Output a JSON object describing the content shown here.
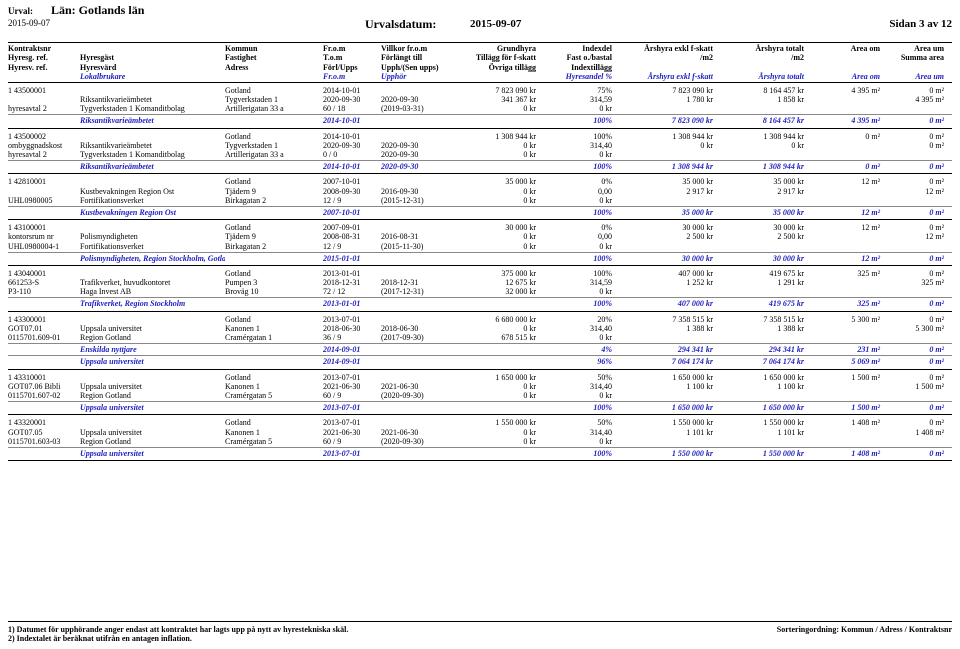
{
  "header": {
    "urval_label": "Urval:",
    "lan_label": "Län: Gotlands län",
    "date_left": "2015-09-07",
    "urvalsdatum_label": "Urvalsdatum:",
    "urvalsdatum": "2015-09-07",
    "sidan": "Sidan 3 av 12"
  },
  "col": {
    "r1": {
      "c1": "Kontraktsnr",
      "c2": "",
      "c3": "Kommun",
      "c4": "Fr.o.m",
      "c5": "Villkor fr.o.m",
      "c6": "Grundhyra",
      "c7": "Indexdel",
      "c8": "Årshyra exkl f-skatt",
      "c9": "Årshyra totalt",
      "c10": "Area om",
      "c11": "Area um"
    },
    "r2": {
      "c1": "Hyresg. ref.",
      "c2": "Hyresgäst",
      "c3": "Fastighet",
      "c4": "T.o.m",
      "c5": "Förlängt till",
      "c6": "Tillägg för f-skatt",
      "c7": "Fast o./bastal",
      "c8": "/m2",
      "c9": "/m2",
      "c10": "",
      "c11": "Summa area"
    },
    "r3": {
      "c1": "Hyresv. ref.",
      "c2": "Hyresvärd",
      "c3": "Adress",
      "c4": "Förl/Upps",
      "c5": "Upph/(Sen upps)",
      "c6": "Övriga tillägg",
      "c7": "Indextillägg",
      "c8": "",
      "c9": "",
      "c10": "",
      "c11": ""
    },
    "r4": {
      "c1": "",
      "c2": "Lokalbrukare",
      "c3": "",
      "c4": "Fr.o.m",
      "c5": "Upphör",
      "c6": "",
      "c7": "Hyresandel %",
      "c8": "Årshyra exkl f-skatt",
      "c9": "Årshyra totalt",
      "c10": "Area om",
      "c11": "Area um"
    }
  },
  "groups": [
    {
      "rows": [
        {
          "c1": "1 43500001",
          "c2": "",
          "c3": "Gotland",
          "c4": "2014-10-01",
          "c5": "",
          "c6": "7 823 090 kr",
          "c7": "75%",
          "c8": "7 823 090 kr",
          "c9": "8 164 457 kr",
          "c10": "4 395 m²",
          "c11": "0 m²"
        },
        {
          "c1": "",
          "c2": "Riksantikvarieämbetet",
          "c3": "Tygverkstaden 1",
          "c4": "2020-09-30",
          "c5": "2020-09-30",
          "c6": "341 367 kr",
          "c7": "314,59",
          "c8": "1 780 kr",
          "c9": "1 858 kr",
          "c10": "",
          "c11": "4 395 m²"
        },
        {
          "c1": "hyresavtal 2",
          "c2": "Tygverkstaden 1 Komanditbolag",
          "c3": "Artillerigatan 33 a",
          "c4": "60 / 18",
          "c5": "(2019-03-31)",
          "c6": "0 kr",
          "c7": "0 kr",
          "c8": "",
          "c9": "",
          "c10": "",
          "c11": ""
        }
      ],
      "totals": [
        {
          "c2": "Riksantikvarieämbetet",
          "c4": "2014-10-01",
          "c5": "",
          "c7": "100%",
          "c8": "7 823 090 kr",
          "c9": "8 164 457 kr",
          "c10": "4 395 m²",
          "c11": "0 m²"
        }
      ]
    },
    {
      "rows": [
        {
          "c1": "1 43500002",
          "c2": "",
          "c3": "Gotland",
          "c4": "2014-10-01",
          "c5": "",
          "c6": "1 308 944 kr",
          "c7": "100%",
          "c8": "1 308 944 kr",
          "c9": "1 308 944 kr",
          "c10": "0 m²",
          "c11": "0 m²"
        },
        {
          "c1": "ombyggnadskost",
          "c2": "Riksantikvarieämbetet",
          "c3": "Tygverkstaden 1",
          "c4": "2020-09-30",
          "c5": "2020-09-30",
          "c6": "0 kr",
          "c7": "314,40",
          "c8": "0 kr",
          "c9": "0 kr",
          "c10": "",
          "c11": "0 m²"
        },
        {
          "c1": "hyresavtal 2",
          "c2": "Tygverkstaden 1 Komanditbolag",
          "c3": "Artillerigatan 33 a",
          "c4": "0 / 0",
          "c5": "2020-09-30",
          "c6": "0 kr",
          "c7": "0 kr",
          "c8": "",
          "c9": "",
          "c10": "",
          "c11": ""
        }
      ],
      "totals": [
        {
          "c2": "Riksantikvarieämbetet",
          "c4": "2014-10-01",
          "c5": "2020-09-30",
          "c7": "100%",
          "c8": "1 308 944 kr",
          "c9": "1 308 944 kr",
          "c10": "0 m²",
          "c11": "0 m²"
        }
      ]
    },
    {
      "rows": [
        {
          "c1": "1 42810001",
          "c2": "",
          "c3": "Gotland",
          "c4": "2007-10-01",
          "c5": "",
          "c6": "35 000 kr",
          "c7": "0%",
          "c8": "35 000 kr",
          "c9": "35 000 kr",
          "c10": "12 m²",
          "c11": "0 m²"
        },
        {
          "c1": "",
          "c2": "Kustbevakningen Region Ost",
          "c3": "Tjädern 9",
          "c4": "2008-09-30",
          "c5": "2016-09-30",
          "c6": "0 kr",
          "c7": "0,00",
          "c8": "2 917 kr",
          "c9": "2 917 kr",
          "c10": "",
          "c11": "12 m²"
        },
        {
          "c1": "UHL0980005",
          "c2": "Fortifikationsverket",
          "c3": "Birkagatan 2",
          "c4": "12 / 9",
          "c5": "(2015-12-31)",
          "c6": "0 kr",
          "c7": "0 kr",
          "c8": "",
          "c9": "",
          "c10": "",
          "c11": ""
        }
      ],
      "totals": [
        {
          "c2": "Kustbevakningen Region Ost",
          "c4": "2007-10-01",
          "c5": "",
          "c7": "100%",
          "c8": "35 000 kr",
          "c9": "35 000 kr",
          "c10": "12 m²",
          "c11": "0 m²"
        }
      ]
    },
    {
      "rows": [
        {
          "c1": "1 43100001",
          "c2": "",
          "c3": "Gotland",
          "c4": "2007-09-01",
          "c5": "",
          "c6": "30 000 kr",
          "c7": "0%",
          "c8": "30 000 kr",
          "c9": "30 000 kr",
          "c10": "12 m²",
          "c11": "0 m²"
        },
        {
          "c1": "kontorsrum nr",
          "c2": "Polismyndigheten",
          "c3": "Tjädern 9",
          "c4": "2008-08-31",
          "c5": "2016-08-31",
          "c6": "0 kr",
          "c7": "0,00",
          "c8": "2 500 kr",
          "c9": "2 500 kr",
          "c10": "",
          "c11": "12 m²"
        },
        {
          "c1": "UHL0980004-1",
          "c2": "Fortifikationsverket",
          "c3": "Birkagatan 2",
          "c4": "12 / 9",
          "c5": "(2015-11-30)",
          "c6": "0 kr",
          "c7": "0 kr",
          "c8": "",
          "c9": "",
          "c10": "",
          "c11": ""
        }
      ],
      "totals": [
        {
          "c2": "Polismyndigheten, Region Stockholm, Gotland",
          "c4": "2015-01-01",
          "c5": "",
          "c7": "100%",
          "c8": "30 000 kr",
          "c9": "30 000 kr",
          "c10": "12 m²",
          "c11": "0 m²"
        }
      ]
    },
    {
      "rows": [
        {
          "c1": "1 43040001",
          "c2": "",
          "c3": "Gotland",
          "c4": "2013-01-01",
          "c5": "",
          "c6": "375 000 kr",
          "c7": "100%",
          "c8": "407 000 kr",
          "c9": "419 675 kr",
          "c10": "325 m²",
          "c11": "0 m²"
        },
        {
          "c1": "661253-S",
          "c2": "Trafikverket, huvudkontoret",
          "c3": "Pumpen 3",
          "c4": "2018-12-31",
          "c5": "2018-12-31",
          "c6": "12 675 kr",
          "c7": "314,59",
          "c8": "1 252 kr",
          "c9": "1 291 kr",
          "c10": "",
          "c11": "325 m²"
        },
        {
          "c1": "P3-110",
          "c2": "Haga Invest AB",
          "c3": "Broväg 10",
          "c4": "72 / 12",
          "c5": "(2017-12-31)",
          "c6": "32 000 kr",
          "c7": "0 kr",
          "c8": "",
          "c9": "",
          "c10": "",
          "c11": ""
        }
      ],
      "totals": [
        {
          "c2": "Trafikverket, Region Stockholm",
          "c4": "2013-01-01",
          "c5": "",
          "c7": "100%",
          "c8": "407 000 kr",
          "c9": "419 675 kr",
          "c10": "325 m²",
          "c11": "0 m²"
        }
      ]
    },
    {
      "rows": [
        {
          "c1": "1 43300001",
          "c2": "",
          "c3": "Gotland",
          "c4": "2013-07-01",
          "c5": "",
          "c6": "6 680 000 kr",
          "c7": "20%",
          "c8": "7 358 515 kr",
          "c9": "7 358 515 kr",
          "c10": "5 300 m²",
          "c11": "0 m²"
        },
        {
          "c1": "GOT07.01",
          "c2": "Uppsala universitet",
          "c3": "Kanonen 1",
          "c4": "2018-06-30",
          "c5": "2018-06-30",
          "c6": "0 kr",
          "c7": "314,40",
          "c8": "1 388 kr",
          "c9": "1 388 kr",
          "c10": "",
          "c11": "5 300 m²"
        },
        {
          "c1": "0115701.609-01",
          "c2": "Region Gotland",
          "c3": "Cramérgatan 1",
          "c4": "36 / 9",
          "c5": "(2017-09-30)",
          "c6": "678 515 kr",
          "c7": "0 kr",
          "c8": "",
          "c9": "",
          "c10": "",
          "c11": ""
        }
      ],
      "totals": [
        {
          "c2": "Enskilda nyttjare",
          "c4": "2014-09-01",
          "c5": "",
          "c7": "4%",
          "c8": "294 341 kr",
          "c9": "294 341 kr",
          "c10": "231 m²",
          "c11": "0 m²"
        },
        {
          "c2": "Uppsala universitet",
          "c4": "2014-09-01",
          "c5": "",
          "c7": "96%",
          "c8": "7 064 174 kr",
          "c9": "7 064 174 kr",
          "c10": "5 069 m²",
          "c11": "0 m²"
        }
      ]
    },
    {
      "rows": [
        {
          "c1": "1 43310001",
          "c2": "",
          "c3": "Gotland",
          "c4": "2013-07-01",
          "c5": "",
          "c6": "1 650 000 kr",
          "c7": "50%",
          "c8": "1 650 000 kr",
          "c9": "1 650 000 kr",
          "c10": "1 500 m²",
          "c11": "0 m²"
        },
        {
          "c1": "GOT07.06 Bibli",
          "c2": "Uppsala universitet",
          "c3": "Kanonen 1",
          "c4": "2021-06-30",
          "c5": "2021-06-30",
          "c6": "0 kr",
          "c7": "314,40",
          "c8": "1 100 kr",
          "c9": "1 100 kr",
          "c10": "",
          "c11": "1 500 m²"
        },
        {
          "c1": "0115701.607-02",
          "c2": "Region Gotland",
          "c3": "Cramérgatan 5",
          "c4": "60 / 9",
          "c5": "(2020-09-30)",
          "c6": "0 kr",
          "c7": "0 kr",
          "c8": "",
          "c9": "",
          "c10": "",
          "c11": ""
        }
      ],
      "totals": [
        {
          "c2": "Uppsala universitet",
          "c4": "2013-07-01",
          "c5": "",
          "c7": "100%",
          "c8": "1 650 000 kr",
          "c9": "1 650 000 kr",
          "c10": "1 500 m²",
          "c11": "0 m²"
        }
      ]
    },
    {
      "rows": [
        {
          "c1": "1 43320001",
          "c2": "",
          "c3": "Gotland",
          "c4": "2013-07-01",
          "c5": "",
          "c6": "1 550 000 kr",
          "c7": "50%",
          "c8": "1 550 000 kr",
          "c9": "1 550 000 kr",
          "c10": "1 408 m²",
          "c11": "0 m²"
        },
        {
          "c1": "GOT07.05",
          "c2": "Uppsala universitet",
          "c3": "Kanonen 1",
          "c4": "2021-06-30",
          "c5": "2021-06-30",
          "c6": "0 kr",
          "c7": "314,40",
          "c8": "1 101 kr",
          "c9": "1 101 kr",
          "c10": "",
          "c11": "1 408 m²"
        },
        {
          "c1": "0115701.603-03",
          "c2": "Region Gotland",
          "c3": "Cramérgatan 5",
          "c4": "60 / 9",
          "c5": "(2020-09-30)",
          "c6": "0 kr",
          "c7": "0 kr",
          "c8": "",
          "c9": "",
          "c10": "",
          "c11": ""
        }
      ],
      "totals": [
        {
          "c2": "Uppsala universitet",
          "c4": "2013-07-01",
          "c5": "",
          "c7": "100%",
          "c8": "1 550 000 kr",
          "c9": "1 550 000 kr",
          "c10": "1 408 m²",
          "c11": "0 m²"
        }
      ]
    }
  ],
  "footer": {
    "note1": "1) Datumet för upphörande anger endast att kontraktet har lagts upp på nytt av hyrestekniska skäl.",
    "note2": "2) Indextalet är beräknat utifrån en antagen inflation.",
    "sort": "Sorteringordning: Kommun / Adress / Kontraktsnr"
  }
}
